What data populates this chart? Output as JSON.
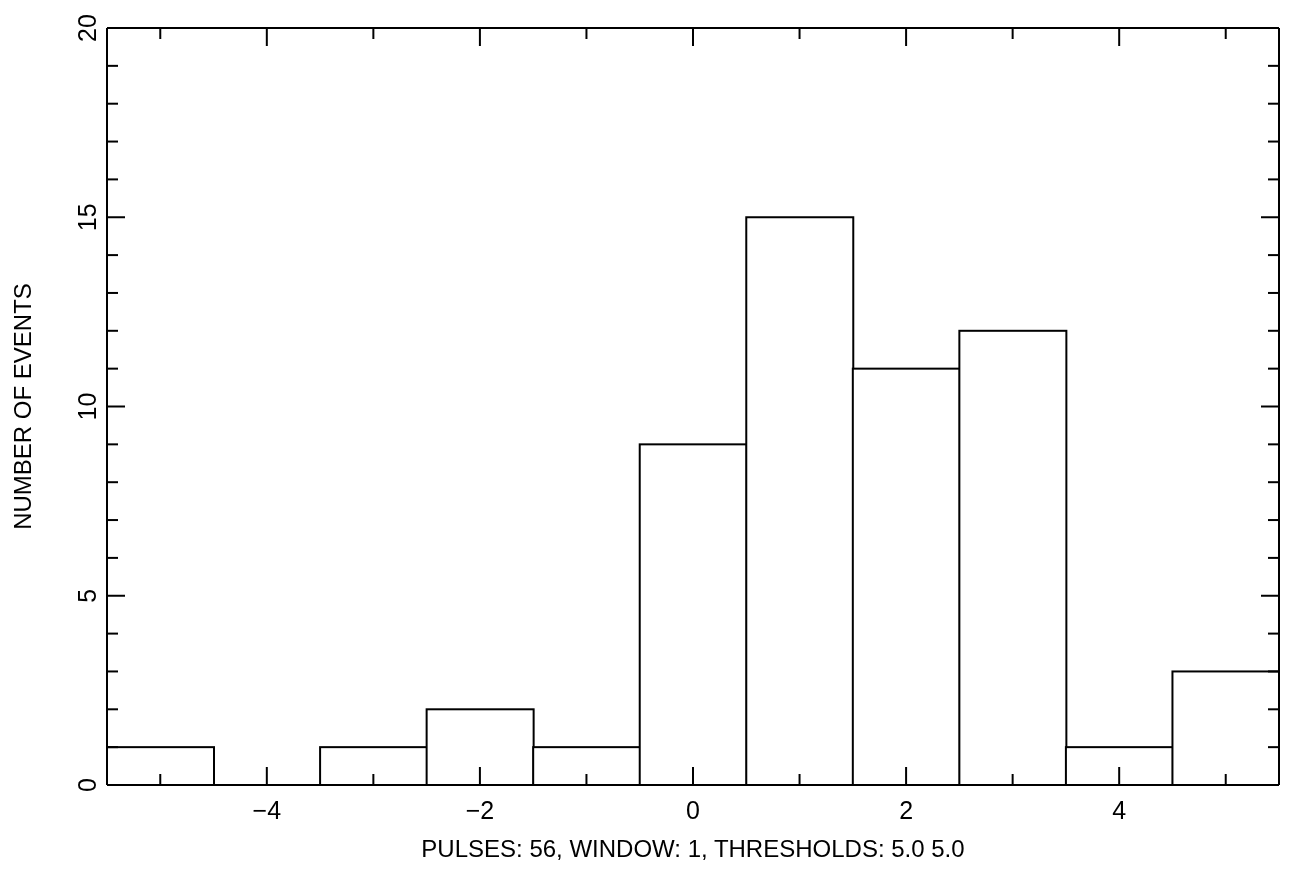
{
  "chart_data": {
    "type": "histogram",
    "xlabel": "PULSES:  56, WINDOW:  1, THRESHOLDS: 5.0  5.0",
    "ylabel": "NUMBER OF EVENTS",
    "bins": [
      -5.5,
      -4.5,
      -3.5,
      -2.5,
      -1.5,
      -0.5,
      0.5,
      1.5,
      2.5,
      3.5,
      4.5,
      5.5
    ],
    "values": [
      1,
      0,
      1,
      2,
      1,
      9,
      15,
      11,
      12,
      1,
      3
    ],
    "xlim": [
      -5.5,
      5.5
    ],
    "xticks": [
      {
        "value": -5,
        "label": null
      },
      {
        "value": -4,
        "label": "−4"
      },
      {
        "value": -3,
        "label": null
      },
      {
        "value": -2,
        "label": "−2"
      },
      {
        "value": -1,
        "label": null
      },
      0,
      {
        "value": 1,
        "label": null
      },
      2,
      {
        "value": 3,
        "label": null
      },
      4,
      {
        "value": 5,
        "label": null
      }
    ],
    "ylim": [
      0,
      20
    ],
    "yticks": [
      0,
      {
        "value": 1,
        "label": null
      },
      {
        "value": 2,
        "label": null
      },
      {
        "value": 3,
        "label": null
      },
      {
        "value": 4,
        "label": null
      },
      5,
      {
        "value": 6,
        "label": null
      },
      {
        "value": 7,
        "label": null
      },
      {
        "value": 8,
        "label": null
      },
      {
        "value": 9,
        "label": null
      },
      10,
      {
        "value": 11,
        "label": null
      },
      {
        "value": 12,
        "label": null
      },
      {
        "value": 13,
        "label": null
      },
      {
        "value": 14,
        "label": null
      },
      15,
      {
        "value": 16,
        "label": null
      },
      {
        "value": 17,
        "label": null
      },
      {
        "value": 18,
        "label": null
      },
      {
        "value": 19,
        "label": null
      },
      20
    ]
  }
}
